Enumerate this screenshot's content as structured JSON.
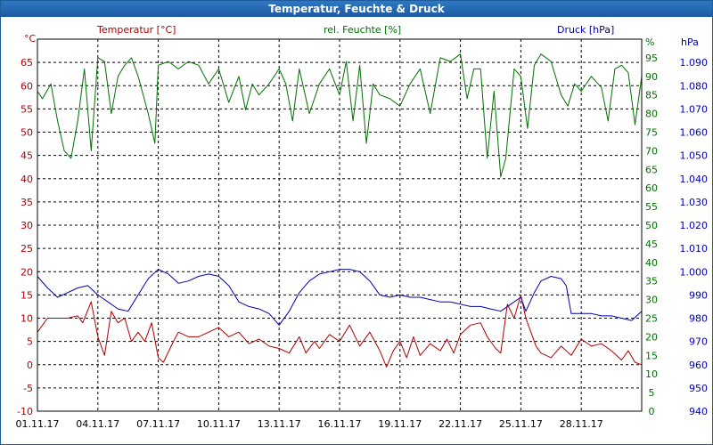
{
  "window": {
    "title": "Temperatur, Feuchte & Druck"
  },
  "colors": {
    "temperature": "#b00000",
    "humidity": "#007000",
    "pressure": "#0000b0",
    "grid": "#000000",
    "frame": "#000000"
  },
  "chart_data": {
    "type": "line",
    "title": "Temperatur, Feuchte & Druck",
    "grid": true,
    "x": {
      "range": [
        "01.11.17",
        "01.12.17"
      ],
      "ticks": [
        "01.11.17",
        "04.11.17",
        "07.11.17",
        "10.11.17",
        "13.11.17",
        "16.11.17",
        "19.11.17",
        "22.11.17",
        "25.11.17",
        "28.11.17"
      ],
      "tick_days": [
        0,
        3,
        6,
        9,
        12,
        15,
        18,
        21,
        24,
        27
      ]
    },
    "axes": {
      "temperature": {
        "label": "Temperatur [°C]",
        "unit": "°C",
        "range": [
          -10,
          70
        ],
        "ticks": [
          -10,
          -5,
          0,
          5,
          10,
          15,
          20,
          25,
          30,
          35,
          40,
          45,
          50,
          55,
          60,
          65
        ]
      },
      "humidity": {
        "label": "rel. Feuchte [%]",
        "unit": "%",
        "range": [
          0,
          100
        ],
        "ticks": [
          0,
          5,
          10,
          15,
          20,
          25,
          30,
          35,
          40,
          45,
          50,
          55,
          60,
          65,
          70,
          75,
          80,
          85,
          90,
          95
        ]
      },
      "pressure": {
        "label": "Druck [hPa]",
        "unit": "hPa",
        "range": [
          940,
          1100
        ],
        "ticks": [
          "940",
          "950",
          "960",
          "970",
          "980",
          "990",
          "1.000",
          "1.010",
          "1.020",
          "1.030",
          "1.040",
          "1.050",
          "1.060",
          "1.070",
          "1.080",
          "1.090"
        ]
      }
    },
    "series": [
      {
        "name": "Temperatur [°C]",
        "axis": "temperature",
        "points": [
          [
            "01.11.17",
            7
          ],
          [
            "01.11.17 12:00",
            10
          ],
          [
            "02.11.17",
            10
          ],
          [
            "02.11.17 12:00",
            10
          ],
          [
            "03.11.17",
            10.5
          ],
          [
            "03.11.17 06:00",
            9
          ],
          [
            "03.11.17 16:00",
            13.5
          ],
          [
            "04.11.17",
            6
          ],
          [
            "04.11.17 08:00",
            2
          ],
          [
            "04.11.17 16:00",
            11.5
          ],
          [
            "05.11.17",
            9
          ],
          [
            "05.11.17 08:00",
            10
          ],
          [
            "05.11.17 16:00",
            5
          ],
          [
            "06.11.17",
            7
          ],
          [
            "06.11.17 08:00",
            5
          ],
          [
            "06.11.17 16:00",
            9
          ],
          [
            "07.11.17",
            1.5
          ],
          [
            "07.11.17 06:00",
            0.5
          ],
          [
            "07.11.17 18:00",
            5
          ],
          [
            "08.11.17",
            7
          ],
          [
            "08.11.17 12:00",
            6
          ],
          [
            "09.11.17",
            6
          ],
          [
            "09.11.17 12:00",
            7
          ],
          [
            "10.11.17",
            8
          ],
          [
            "10.11.17 12:00",
            6
          ],
          [
            "11.11.17",
            7
          ],
          [
            "11.11.17 12:00",
            4.5
          ],
          [
            "12.11.17",
            5.5
          ],
          [
            "12.11.17 12:00",
            4
          ],
          [
            "13.11.17",
            3.5
          ],
          [
            "13.11.17 12:00",
            2.5
          ],
          [
            "14.11.17",
            6
          ],
          [
            "14.11.17 08:00",
            2.5
          ],
          [
            "14.11.17 18:00",
            5
          ],
          [
            "15.11.17",
            3.5
          ],
          [
            "15.11.17 12:00",
            6.5
          ],
          [
            "16.11.17",
            5
          ],
          [
            "16.11.17 12:00",
            8.5
          ],
          [
            "17.11.17",
            4
          ],
          [
            "17.11.17 12:00",
            7
          ],
          [
            "18.11.17",
            3
          ],
          [
            "18.11.17 08:00",
            -0.5
          ],
          [
            "18.11.17 16:00",
            3
          ],
          [
            "19.11.17",
            5
          ],
          [
            "19.11.17 08:00",
            1.5
          ],
          [
            "19.11.17 16:00",
            6
          ],
          [
            "20.11.17",
            2
          ],
          [
            "20.11.17 12:00",
            4.5
          ],
          [
            "21.11.17",
            3
          ],
          [
            "21.11.17 08:00",
            5.5
          ],
          [
            "21.11.17 16:00",
            2.5
          ],
          [
            "22.11.17",
            6.5
          ],
          [
            "22.11.17 12:00",
            8.5
          ],
          [
            "23.11.17",
            9
          ],
          [
            "23.11.17 08:00",
            6
          ],
          [
            "23.11.17 18:00",
            3.5
          ],
          [
            "24.11.17",
            2.5
          ],
          [
            "24.11.17 08:00",
            13
          ],
          [
            "24.11.17 16:00",
            10
          ],
          [
            "25.11.17",
            15
          ],
          [
            "25.11.17 06:00",
            10
          ],
          [
            "25.11.17 18:00",
            4
          ],
          [
            "26.11.17",
            2.5
          ],
          [
            "26.11.17 12:00",
            1.5
          ],
          [
            "27.11.17",
            4
          ],
          [
            "27.11.17 12:00",
            2
          ],
          [
            "28.11.17",
            5.5
          ],
          [
            "28.11.17 12:00",
            4
          ],
          [
            "29.11.17",
            4.5
          ],
          [
            "29.11.17 12:00",
            3
          ],
          [
            "30.11.17",
            1
          ],
          [
            "30.11.17 08:00",
            3
          ],
          [
            "30.11.17 16:00",
            0.5
          ],
          [
            "01.12.17",
            0
          ]
        ]
      },
      {
        "name": "rel. Feuchte [%]",
        "axis": "humidity",
        "points": [
          [
            "01.11.17",
            86
          ],
          [
            "01.11.17 06:00",
            84
          ],
          [
            "01.11.17 16:00",
            88
          ],
          [
            "02.11.17",
            78
          ],
          [
            "02.11.17 08:00",
            70
          ],
          [
            "02.11.17 16:00",
            68
          ],
          [
            "03.11.17",
            78
          ],
          [
            "03.11.17 08:00",
            92
          ],
          [
            "03.11.17 16:00",
            70
          ],
          [
            "04.11.17",
            95
          ],
          [
            "04.11.17 08:00",
            94
          ],
          [
            "04.11.17 16:00",
            80
          ],
          [
            "05.11.17",
            90
          ],
          [
            "05.11.17 08:00",
            93
          ],
          [
            "05.11.17 16:00",
            95
          ],
          [
            "06.11.17",
            90
          ],
          [
            "06.11.17 12:00",
            80
          ],
          [
            "06.11.17 20:00",
            72
          ],
          [
            "07.11.17",
            93
          ],
          [
            "07.11.17 12:00",
            94
          ],
          [
            "08.11.17",
            92
          ],
          [
            "08.11.17 12:00",
            94
          ],
          [
            "09.11.17",
            93
          ],
          [
            "09.11.17 12:00",
            88
          ],
          [
            "10.11.17",
            92
          ],
          [
            "10.11.17 12:00",
            83
          ],
          [
            "11.11.17",
            90
          ],
          [
            "11.11.17 08:00",
            81
          ],
          [
            "11.11.17 16:00",
            88
          ],
          [
            "12.11.17",
            85
          ],
          [
            "12.11.17 12:00",
            88
          ],
          [
            "13.11.17",
            92
          ],
          [
            "13.11.17 08:00",
            88
          ],
          [
            "13.11.17 16:00",
            78
          ],
          [
            "14.11.17",
            92
          ],
          [
            "14.11.17 12:00",
            80
          ],
          [
            "15.11.17",
            88
          ],
          [
            "15.11.17 12:00",
            92
          ],
          [
            "16.11.17",
            85
          ],
          [
            "16.11.17 08:00",
            94
          ],
          [
            "16.11.17 16:00",
            78
          ],
          [
            "17.11.17",
            93
          ],
          [
            "17.11.17 08:00",
            72
          ],
          [
            "17.11.17 16:00",
            88
          ],
          [
            "18.11.17",
            85
          ],
          [
            "18.11.17 12:00",
            84
          ],
          [
            "19.11.17",
            82
          ],
          [
            "19.11.17 12:00",
            88
          ],
          [
            "20.11.17",
            92
          ],
          [
            "20.11.17 12:00",
            80
          ],
          [
            "21.11.17",
            95
          ],
          [
            "21.11.17 12:00",
            94
          ],
          [
            "22.11.17",
            96
          ],
          [
            "22.11.17 08:00",
            84
          ],
          [
            "22.11.17 16:00",
            92
          ],
          [
            "23.11.17",
            92
          ],
          [
            "23.11.17 08:00",
            68
          ],
          [
            "23.11.17 16:00",
            86
          ],
          [
            "24.11.17",
            63
          ],
          [
            "24.11.17 06:00",
            68
          ],
          [
            "24.11.17 16:00",
            92
          ],
          [
            "25.11.17",
            90
          ],
          [
            "25.11.17 08:00",
            76
          ],
          [
            "25.11.17 16:00",
            93
          ],
          [
            "26.11.17",
            96
          ],
          [
            "26.11.17 12:00",
            94
          ],
          [
            "27.11.17",
            85
          ],
          [
            "27.11.17 08:00",
            82
          ],
          [
            "27.11.17 16:00",
            88
          ],
          [
            "28.11.17",
            86
          ],
          [
            "28.11.17 12:00",
            90
          ],
          [
            "29.11.17",
            87
          ],
          [
            "29.11.17 08:00",
            78
          ],
          [
            "29.11.17 16:00",
            92
          ],
          [
            "30.11.17",
            93
          ],
          [
            "30.11.17 08:00",
            91
          ],
          [
            "30.11.17 16:00",
            77
          ],
          [
            "01.12.17",
            90
          ]
        ]
      },
      {
        "name": "Druck [hPa]",
        "axis": "pressure",
        "points": [
          [
            "01.11.17",
            998
          ],
          [
            "01.11.17 12:00",
            993
          ],
          [
            "02.11.17",
            989
          ],
          [
            "02.11.17 12:00",
            991
          ],
          [
            "03.11.17",
            993
          ],
          [
            "03.11.17 12:00",
            994
          ],
          [
            "04.11.17",
            990
          ],
          [
            "04.11.17 12:00",
            987
          ],
          [
            "05.11.17",
            984
          ],
          [
            "05.11.17 12:00",
            983
          ],
          [
            "06.11.17",
            990
          ],
          [
            "06.11.17 12:00",
            997
          ],
          [
            "07.11.17",
            1001
          ],
          [
            "07.11.17 12:00",
            999
          ],
          [
            "08.11.17",
            995
          ],
          [
            "08.11.17 12:00",
            996
          ],
          [
            "09.11.17",
            998
          ],
          [
            "09.11.17 12:00",
            999
          ],
          [
            "10.11.17",
            998
          ],
          [
            "10.11.17 12:00",
            994
          ],
          [
            "11.11.17",
            987
          ],
          [
            "11.11.17 12:00",
            985
          ],
          [
            "12.11.17",
            984
          ],
          [
            "12.11.17 12:00",
            982
          ],
          [
            "13.11.17",
            977
          ],
          [
            "13.11.17 12:00",
            983
          ],
          [
            "14.11.17",
            991
          ],
          [
            "14.11.17 12:00",
            996
          ],
          [
            "15.11.17",
            999
          ],
          [
            "15.11.17 12:00",
            1000
          ],
          [
            "16.11.17",
            1001
          ],
          [
            "16.11.17 12:00",
            1001
          ],
          [
            "17.11.17",
            1000
          ],
          [
            "17.11.17 12:00",
            996
          ],
          [
            "18.11.17",
            990
          ],
          [
            "18.11.17 12:00",
            989
          ],
          [
            "19.11.17",
            990
          ],
          [
            "19.11.17 12:00",
            989
          ],
          [
            "20.11.17",
            989
          ],
          [
            "20.11.17 12:00",
            988
          ],
          [
            "21.11.17",
            987
          ],
          [
            "21.11.17 12:00",
            987
          ],
          [
            "22.11.17",
            986
          ],
          [
            "22.11.17 12:00",
            985
          ],
          [
            "23.11.17",
            985
          ],
          [
            "23.11.17 12:00",
            984
          ],
          [
            "24.11.17",
            983
          ],
          [
            "24.11.17 12:00",
            986
          ],
          [
            "25.11.17",
            989
          ],
          [
            "25.11.17 06:00",
            983
          ],
          [
            "25.11.17 16:00",
            991
          ],
          [
            "26.11.17",
            996
          ],
          [
            "26.11.17 12:00",
            998
          ],
          [
            "27.11.17",
            997
          ],
          [
            "27.11.17 06:00",
            994
          ],
          [
            "27.11.17 12:00",
            982
          ],
          [
            "28.11.17",
            982
          ],
          [
            "28.11.17 12:00",
            982
          ],
          [
            "29.11.17",
            981
          ],
          [
            "29.11.17 12:00",
            981
          ],
          [
            "30.11.17",
            980
          ],
          [
            "30.11.17 12:00",
            979
          ],
          [
            "01.12.17",
            983
          ]
        ]
      }
    ]
  }
}
